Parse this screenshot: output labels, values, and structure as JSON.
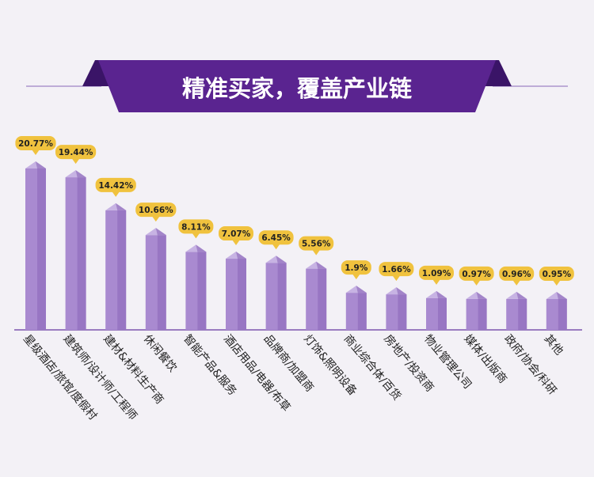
{
  "title": "精准买家，覆盖产业链",
  "colors": {
    "background": "#f3f1f6",
    "banner": "#5a2490",
    "banner_dark": "#3a1467",
    "bar_front": "#a98ad0",
    "bar_side": "#8a66b8",
    "bar_top": "#c7b3e3",
    "badge": "#f0c23e",
    "baseline": "#7d55ad",
    "label_text": "#222222",
    "title_text": "#ffffff"
  },
  "chart_data": {
    "type": "bar",
    "title": "精准买家，覆盖产业链",
    "xlabel": "",
    "ylabel": "",
    "categories": [
      "星级酒店/旅馆/度假村",
      "建筑师/设计师/工程师",
      "建材&材料生产商",
      "休闲餐饮",
      "智能产品&服务",
      "酒店用品/电器/布草",
      "品牌商/加盟商",
      "灯饰&照明设备",
      "商业综合体/百货",
      "房地产/投资商",
      "物业管理公司",
      "媒体/出版商",
      "政府/协会/科研",
      "其他"
    ],
    "values": [
      20.77,
      19.44,
      14.42,
      10.66,
      8.11,
      7.07,
      6.45,
      5.56,
      1.9,
      1.66,
      1.09,
      0.97,
      0.96,
      0.95
    ],
    "data_labels": [
      "20.77%",
      "19.44%",
      "14.42%",
      "10.66%",
      "8.11%",
      "7.07%",
      "6.45%",
      "5.56%",
      "1.9%",
      "1.66%",
      "1.09%",
      "0.97%",
      "0.96%",
      "0.95%"
    ],
    "unit": "%",
    "grid": false,
    "legend": "none"
  }
}
